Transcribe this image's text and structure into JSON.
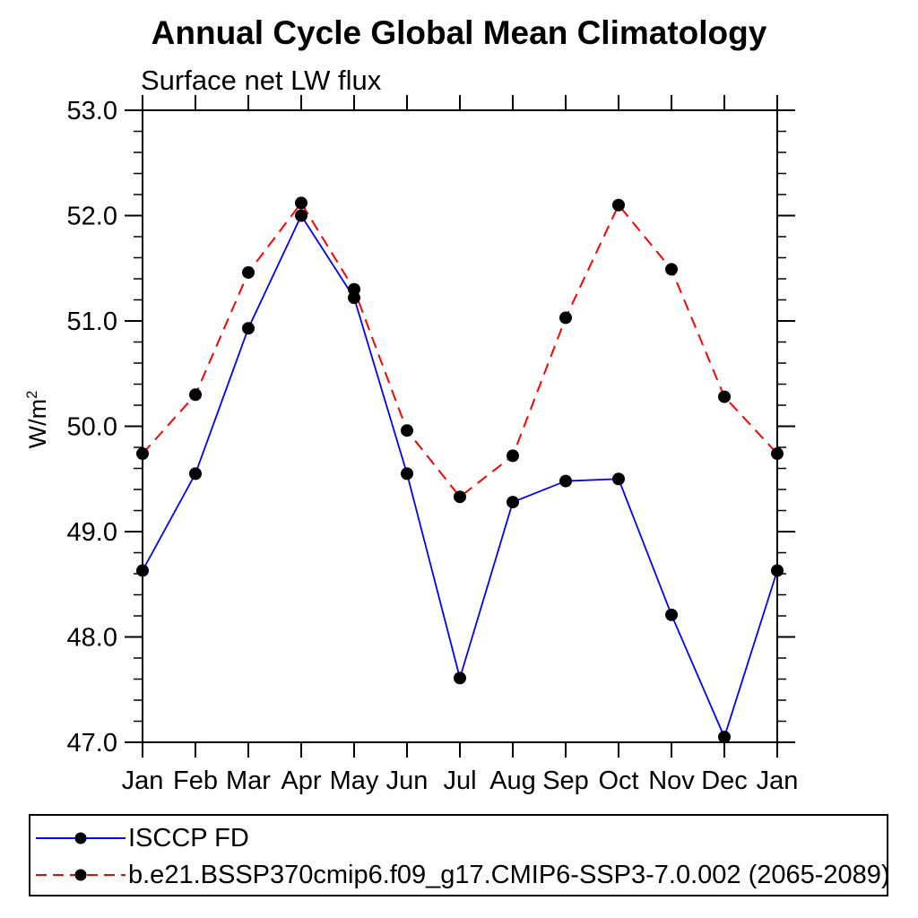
{
  "chart_data": {
    "type": "line",
    "title": "Annual Cycle Global Mean Climatology",
    "subtitle": "Surface net LW flux",
    "ylabel_base": "W/m",
    "ylabel_exp": "2",
    "xlabel": "",
    "categories": [
      "Jan",
      "Feb",
      "Mar",
      "Apr",
      "May",
      "Jun",
      "Jul",
      "Aug",
      "Sep",
      "Oct",
      "Nov",
      "Dec",
      "Jan"
    ],
    "series": [
      {
        "name": "ISCCP FD",
        "color": "#0000ff",
        "line_style": "solid",
        "marker": "filled-circle",
        "marker_color": "#000000",
        "values": [
          48.63,
          49.55,
          50.93,
          52.0,
          51.22,
          49.55,
          47.61,
          49.28,
          49.48,
          49.5,
          48.21,
          47.05,
          48.63
        ]
      },
      {
        "name": "b.e21.BSSP370cmip6.f09_g17.CMIP6-SSP3-7.0.002 (2065-2089)",
        "color": "#ff0000",
        "line_style": "dashed",
        "marker": "filled-circle",
        "marker_color": "#000000",
        "values": [
          49.74,
          50.3,
          51.46,
          52.12,
          51.3,
          49.96,
          49.33,
          49.72,
          51.03,
          52.1,
          51.49,
          50.28,
          49.74
        ]
      }
    ],
    "ylim": [
      47.0,
      53.0
    ],
    "ytick_labels": [
      "47.0",
      "48.0",
      "49.0",
      "50.0",
      "51.0",
      "52.0",
      "53.0"
    ],
    "ytick_step": 1.0,
    "yminor_step": 0.2,
    "grid": false,
    "legend_position": "bottom",
    "axis_color": "#000000"
  }
}
